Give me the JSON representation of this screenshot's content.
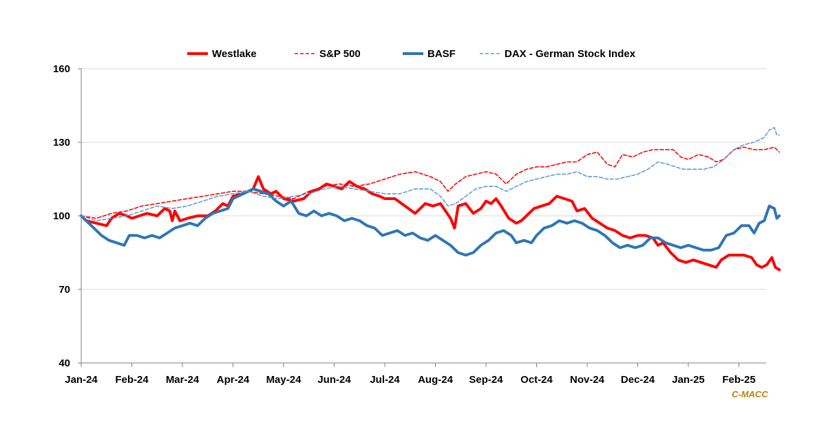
{
  "source_label": "C-MACC",
  "chart_data": {
    "type": "line",
    "title": "",
    "xlabel": "",
    "ylabel": "",
    "ylim": [
      40,
      160
    ],
    "yticks": [
      40,
      70,
      100,
      130,
      160
    ],
    "grid": "horizontal",
    "legend_position": "top",
    "categories": [
      "Jan-24",
      "Feb-24",
      "Mar-24",
      "Apr-24",
      "May-24",
      "Jun-24",
      "Jul-24",
      "Aug-24",
      "Sep-24",
      "Oct-24",
      "Nov-24",
      "Dec-24",
      "Jan-25",
      "Feb-25"
    ],
    "x_end": 13.8,
    "series": [
      {
        "name": "Westlake",
        "color": "#ff0000",
        "style": "solid-thick",
        "points": [
          [
            0,
            100
          ],
          [
            0.1,
            98
          ],
          [
            0.3,
            97
          ],
          [
            0.5,
            96
          ],
          [
            0.6,
            99
          ],
          [
            0.75,
            101
          ],
          [
            0.9,
            100
          ],
          [
            1,
            99
          ],
          [
            1.15,
            100
          ],
          [
            1.3,
            101
          ],
          [
            1.5,
            100
          ],
          [
            1.65,
            103
          ],
          [
            1.75,
            102
          ],
          [
            1.8,
            98
          ],
          [
            1.85,
            102
          ],
          [
            1.95,
            98
          ],
          [
            2.1,
            99
          ],
          [
            2.3,
            100
          ],
          [
            2.5,
            100
          ],
          [
            2.65,
            102
          ],
          [
            2.8,
            105
          ],
          [
            2.9,
            104
          ],
          [
            3,
            108
          ],
          [
            3.2,
            109
          ],
          [
            3.4,
            111
          ],
          [
            3.5,
            116
          ],
          [
            3.6,
            111
          ],
          [
            3.75,
            109
          ],
          [
            3.85,
            110
          ],
          [
            4,
            107
          ],
          [
            4.2,
            106
          ],
          [
            4.4,
            107
          ],
          [
            4.55,
            110
          ],
          [
            4.7,
            111
          ],
          [
            4.85,
            113
          ],
          [
            5,
            112
          ],
          [
            5.15,
            111
          ],
          [
            5.3,
            114
          ],
          [
            5.45,
            112
          ],
          [
            5.6,
            111
          ],
          [
            5.75,
            109
          ],
          [
            5.9,
            108
          ],
          [
            6,
            107
          ],
          [
            6.2,
            107
          ],
          [
            6.4,
            104
          ],
          [
            6.6,
            101
          ],
          [
            6.7,
            103
          ],
          [
            6.8,
            105
          ],
          [
            6.95,
            104
          ],
          [
            7.1,
            105
          ],
          [
            7.2,
            102
          ],
          [
            7.3,
            99
          ],
          [
            7.38,
            95
          ],
          [
            7.45,
            104
          ],
          [
            7.6,
            105
          ],
          [
            7.75,
            101
          ],
          [
            7.9,
            103
          ],
          [
            8,
            106
          ],
          [
            8.1,
            105
          ],
          [
            8.2,
            107
          ],
          [
            8.3,
            104
          ],
          [
            8.45,
            99
          ],
          [
            8.6,
            97
          ],
          [
            8.7,
            98
          ],
          [
            8.8,
            100
          ],
          [
            8.95,
            103
          ],
          [
            9.1,
            104
          ],
          [
            9.25,
            105
          ],
          [
            9.4,
            108
          ],
          [
            9.55,
            107
          ],
          [
            9.7,
            106
          ],
          [
            9.8,
            102
          ],
          [
            9.95,
            103
          ],
          [
            10.1,
            99
          ],
          [
            10.25,
            97
          ],
          [
            10.4,
            95
          ],
          [
            10.55,
            94
          ],
          [
            10.7,
            92
          ],
          [
            10.85,
            91
          ],
          [
            11,
            92
          ],
          [
            11.15,
            92
          ],
          [
            11.3,
            91
          ],
          [
            11.4,
            88
          ],
          [
            11.5,
            89
          ],
          [
            11.65,
            85
          ],
          [
            11.8,
            82
          ],
          [
            11.95,
            81
          ],
          [
            12.1,
            82
          ],
          [
            12.25,
            81
          ],
          [
            12.4,
            80
          ],
          [
            12.55,
            79
          ],
          [
            12.65,
            82
          ],
          [
            12.8,
            84
          ],
          [
            12.95,
            84
          ],
          [
            13.1,
            84
          ],
          [
            13.25,
            83
          ],
          [
            13.35,
            80
          ],
          [
            13.45,
            79
          ],
          [
            13.55,
            80
          ],
          [
            13.65,
            83
          ],
          [
            13.72,
            79
          ],
          [
            13.8,
            78
          ]
        ]
      },
      {
        "name": "S&P 500",
        "color": "#ff0000",
        "style": "dashed",
        "points": [
          [
            0,
            100
          ],
          [
            0.3,
            99
          ],
          [
            0.6,
            101
          ],
          [
            0.9,
            102
          ],
          [
            1.2,
            104
          ],
          [
            1.5,
            105
          ],
          [
            1.8,
            106
          ],
          [
            2.1,
            107
          ],
          [
            2.4,
            108
          ],
          [
            2.7,
            109
          ],
          [
            3,
            110
          ],
          [
            3.3,
            110
          ],
          [
            3.6,
            109
          ],
          [
            3.9,
            108
          ],
          [
            4.2,
            107
          ],
          [
            4.5,
            110
          ],
          [
            4.8,
            112
          ],
          [
            5.1,
            113
          ],
          [
            5.4,
            112
          ],
          [
            5.7,
            113
          ],
          [
            6,
            115
          ],
          [
            6.3,
            117
          ],
          [
            6.6,
            118
          ],
          [
            6.9,
            116
          ],
          [
            7.1,
            114
          ],
          [
            7.25,
            110
          ],
          [
            7.4,
            113
          ],
          [
            7.6,
            116
          ],
          [
            7.8,
            117
          ],
          [
            8,
            118
          ],
          [
            8.2,
            117
          ],
          [
            8.4,
            113
          ],
          [
            8.6,
            117
          ],
          [
            8.8,
            119
          ],
          [
            9,
            120
          ],
          [
            9.2,
            120
          ],
          [
            9.4,
            121
          ],
          [
            9.6,
            122
          ],
          [
            9.8,
            122
          ],
          [
            10,
            125
          ],
          [
            10.2,
            126
          ],
          [
            10.4,
            121
          ],
          [
            10.55,
            120
          ],
          [
            10.7,
            125
          ],
          [
            10.9,
            124
          ],
          [
            11.1,
            126
          ],
          [
            11.3,
            127
          ],
          [
            11.5,
            127
          ],
          [
            11.7,
            127
          ],
          [
            11.85,
            124
          ],
          [
            12,
            123
          ],
          [
            12.2,
            125
          ],
          [
            12.4,
            124
          ],
          [
            12.55,
            122
          ],
          [
            12.7,
            123
          ],
          [
            12.9,
            127
          ],
          [
            13.1,
            128
          ],
          [
            13.3,
            127
          ],
          [
            13.5,
            127
          ],
          [
            13.7,
            128
          ],
          [
            13.8,
            126
          ]
        ]
      },
      {
        "name": "BASF",
        "color": "#2e75b6",
        "style": "solid-thick",
        "points": [
          [
            0,
            100
          ],
          [
            0.1,
            98
          ],
          [
            0.25,
            95
          ],
          [
            0.4,
            92
          ],
          [
            0.55,
            90
          ],
          [
            0.7,
            89
          ],
          [
            0.85,
            88
          ],
          [
            0.95,
            92
          ],
          [
            1.1,
            92
          ],
          [
            1.25,
            91
          ],
          [
            1.4,
            92
          ],
          [
            1.55,
            91
          ],
          [
            1.7,
            93
          ],
          [
            1.85,
            95
          ],
          [
            2,
            96
          ],
          [
            2.15,
            97
          ],
          [
            2.3,
            96
          ],
          [
            2.45,
            99
          ],
          [
            2.6,
            101
          ],
          [
            2.75,
            102
          ],
          [
            2.9,
            103
          ],
          [
            3,
            107
          ],
          [
            3.2,
            109
          ],
          [
            3.4,
            111
          ],
          [
            3.55,
            110
          ],
          [
            3.7,
            109
          ],
          [
            3.85,
            106
          ],
          [
            4,
            104
          ],
          [
            4.15,
            106
          ],
          [
            4.3,
            101
          ],
          [
            4.45,
            100
          ],
          [
            4.6,
            102
          ],
          [
            4.75,
            100
          ],
          [
            4.9,
            101
          ],
          [
            5.05,
            100
          ],
          [
            5.2,
            98
          ],
          [
            5.35,
            99
          ],
          [
            5.5,
            98
          ],
          [
            5.65,
            96
          ],
          [
            5.8,
            95
          ],
          [
            5.95,
            92
          ],
          [
            6.1,
            93
          ],
          [
            6.25,
            94
          ],
          [
            6.4,
            92
          ],
          [
            6.55,
            93
          ],
          [
            6.7,
            91
          ],
          [
            6.85,
            90
          ],
          [
            7,
            92
          ],
          [
            7.15,
            90
          ],
          [
            7.3,
            88
          ],
          [
            7.45,
            85
          ],
          [
            7.6,
            84
          ],
          [
            7.75,
            85
          ],
          [
            7.9,
            88
          ],
          [
            8.05,
            90
          ],
          [
            8.2,
            93
          ],
          [
            8.35,
            94
          ],
          [
            8.5,
            92
          ],
          [
            8.6,
            89
          ],
          [
            8.75,
            90
          ],
          [
            8.9,
            89
          ],
          [
            9,
            92
          ],
          [
            9.15,
            95
          ],
          [
            9.3,
            96
          ],
          [
            9.45,
            98
          ],
          [
            9.6,
            97
          ],
          [
            9.75,
            98
          ],
          [
            9.9,
            97
          ],
          [
            10.05,
            95
          ],
          [
            10.2,
            94
          ],
          [
            10.35,
            92
          ],
          [
            10.5,
            89
          ],
          [
            10.65,
            87
          ],
          [
            10.8,
            88
          ],
          [
            10.95,
            87
          ],
          [
            11.1,
            88
          ],
          [
            11.25,
            91
          ],
          [
            11.4,
            91
          ],
          [
            11.55,
            89
          ],
          [
            11.7,
            88
          ],
          [
            11.85,
            87
          ],
          [
            12,
            88
          ],
          [
            12.15,
            87
          ],
          [
            12.3,
            86
          ],
          [
            12.45,
            86
          ],
          [
            12.6,
            87
          ],
          [
            12.75,
            92
          ],
          [
            12.9,
            93
          ],
          [
            13.05,
            96
          ],
          [
            13.2,
            96
          ],
          [
            13.3,
            93
          ],
          [
            13.4,
            97
          ],
          [
            13.5,
            98
          ],
          [
            13.6,
            104
          ],
          [
            13.7,
            103
          ],
          [
            13.75,
            99
          ],
          [
            13.8,
            100
          ]
        ]
      },
      {
        "name": "DAX  - German Stock Index",
        "color": "#5b9bd5",
        "style": "dashed",
        "points": [
          [
            0,
            100
          ],
          [
            0.3,
            98
          ],
          [
            0.6,
            99
          ],
          [
            0.9,
            100
          ],
          [
            1.2,
            102
          ],
          [
            1.5,
            104
          ],
          [
            1.8,
            103
          ],
          [
            2.1,
            104
          ],
          [
            2.4,
            106
          ],
          [
            2.7,
            108
          ],
          [
            3,
            109
          ],
          [
            3.3,
            110
          ],
          [
            3.6,
            108
          ],
          [
            3.9,
            107
          ],
          [
            4.2,
            108
          ],
          [
            4.5,
            109
          ],
          [
            4.8,
            111
          ],
          [
            5.1,
            112
          ],
          [
            5.4,
            111
          ],
          [
            5.7,
            110
          ],
          [
            6,
            109
          ],
          [
            6.3,
            109
          ],
          [
            6.6,
            111
          ],
          [
            6.9,
            111
          ],
          [
            7.1,
            108
          ],
          [
            7.25,
            104
          ],
          [
            7.4,
            105
          ],
          [
            7.6,
            108
          ],
          [
            7.8,
            111
          ],
          [
            8,
            112
          ],
          [
            8.2,
            112
          ],
          [
            8.4,
            110
          ],
          [
            8.6,
            112
          ],
          [
            8.8,
            114
          ],
          [
            9,
            115
          ],
          [
            9.2,
            116
          ],
          [
            9.4,
            117
          ],
          [
            9.6,
            117
          ],
          [
            9.8,
            118
          ],
          [
            10,
            116
          ],
          [
            10.2,
            116
          ],
          [
            10.4,
            115
          ],
          [
            10.6,
            115
          ],
          [
            10.8,
            116
          ],
          [
            11,
            117
          ],
          [
            11.2,
            119
          ],
          [
            11.4,
            122
          ],
          [
            11.6,
            121
          ],
          [
            11.75,
            120
          ],
          [
            11.9,
            119
          ],
          [
            12.1,
            119
          ],
          [
            12.3,
            119
          ],
          [
            12.5,
            120
          ],
          [
            12.7,
            123
          ],
          [
            12.9,
            127
          ],
          [
            13.1,
            129
          ],
          [
            13.3,
            130
          ],
          [
            13.5,
            132
          ],
          [
            13.6,
            135
          ],
          [
            13.7,
            136
          ],
          [
            13.75,
            133
          ],
          [
            13.8,
            133
          ]
        ]
      }
    ]
  }
}
